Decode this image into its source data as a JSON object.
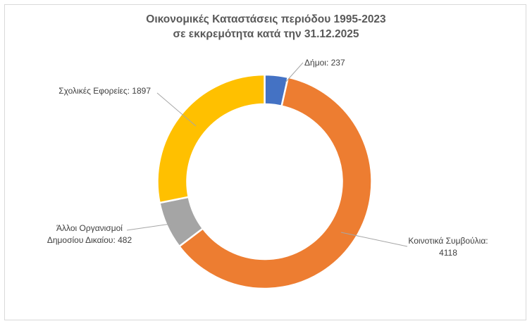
{
  "chart_data": {
    "type": "pie",
    "title_line1": "Οικονομικές Καταστάσεις περιόδου 1995-2023",
    "title_line2": "σε εκκρεμότητα κατά την 31.12.2025",
    "slices": [
      {
        "name": "Δήμοι",
        "value": 237,
        "color": "#4472c4",
        "label": [
          "Δήμοι: 237"
        ]
      },
      {
        "name": "Κοινοτικά Συμβούλια",
        "value": 4118,
        "color": "#ed7d31",
        "label": [
          "Κοινοτικά Συμβούλια:",
          "4118"
        ]
      },
      {
        "name": "Άλλοι Οργανισμοί Δημοσίου Δικαίου",
        "value": 482,
        "color": "#a5a5a5",
        "label": [
          "Άλλοι Οργανισμοί",
          "Δημοσίου Δικαίου: 482"
        ]
      },
      {
        "name": "Σχολικές Εφορείες",
        "value": 1897,
        "color": "#ffc000",
        "label": [
          "Σχολικές Εφορείες: 1897"
        ]
      }
    ],
    "legend": "none"
  }
}
